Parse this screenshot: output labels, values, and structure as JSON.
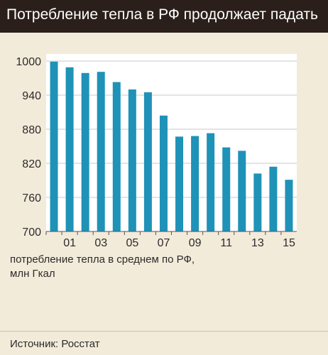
{
  "title": "Потребление тепла в РФ продолжает падать",
  "caption_line1": "потребление тепла в среднем по РФ,",
  "caption_line2": "млн Гкал",
  "source": "Источник: Росстат",
  "colors": {
    "bar": "#1f92b8",
    "title_bg": "#2a1f1a",
    "plot_bg": "#ffffff",
    "page_bg": "#f3ebda",
    "grid": "#c8c8c8"
  },
  "chart_data": {
    "type": "bar",
    "title": "Потребление тепла в РФ продолжает падать",
    "categories": [
      "2000",
      "2001",
      "2002",
      "2003",
      "2004",
      "2005",
      "2006",
      "2007",
      "2008",
      "2009",
      "2010",
      "2011",
      "2012",
      "2013",
      "2014",
      "2015"
    ],
    "x_tick_labels": [
      "01",
      "03",
      "05",
      "07",
      "09",
      "11",
      "13",
      "15"
    ],
    "values": [
      999,
      989,
      979,
      981,
      963,
      950,
      945,
      904,
      867,
      868,
      873,
      848,
      842,
      802,
      814,
      791
    ],
    "ylim": [
      700,
      1000
    ],
    "yticks": [
      700,
      760,
      820,
      880,
      940,
      1000
    ],
    "ylabel": "",
    "xlabel": "",
    "grid": true
  }
}
